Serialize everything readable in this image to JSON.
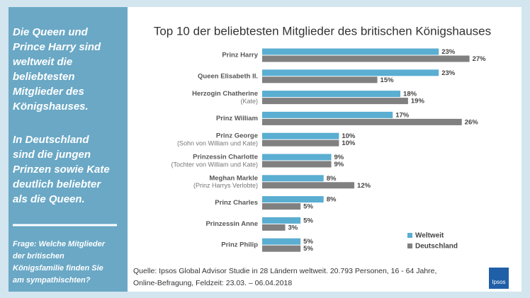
{
  "panel": {
    "paragraph1": [
      "Die Queen und",
      "Prince Harry sind",
      "weltweit die",
      "beliebtesten",
      "Mitglieder des",
      "Königshauses."
    ],
    "paragraph2": [
      "In Deutschland",
      "sind die jungen",
      "Prinzen sowie Kate",
      "deutlich beliebter",
      "als die Queen."
    ],
    "question": [
      "Frage: Welche Mitglieder",
      "der britischen",
      "Königsfamilie finden Sie",
      "am sympathischten?"
    ]
  },
  "chart_data": {
    "type": "hbar",
    "title": "Top 10 der beliebtesten Mitglieder des britischen Königshauses",
    "categories": [
      "Prinz Harry",
      "Queen Elisabeth II.",
      "Herzogin Chatherine",
      "Prinz William",
      "Prinz George",
      "Prinzessin Charlotte",
      "Meghan Markle",
      "Prinz Charles",
      "Prinzessin Anne",
      "Prinz Philip"
    ],
    "category_notes": [
      null,
      null,
      "(Kate)",
      null,
      "(Sohn von William und Kate)",
      "(Tochter von William und Kate)",
      "(Prinz Harrys Verlobte)",
      null,
      null,
      null
    ],
    "series": [
      {
        "name": "Weltweit",
        "color": "#5aaed1",
        "values": [
          23,
          23,
          18,
          17,
          10,
          9,
          8,
          8,
          5,
          5
        ],
        "value_labels": [
          "23%",
          "23%",
          "18%",
          "17%",
          "10%",
          "9%",
          "8%",
          "8%",
          "5%",
          "5%"
        ]
      },
      {
        "name": "Deutschland",
        "color": "#808080",
        "values": [
          27,
          15,
          19,
          26,
          10,
          9,
          12,
          5,
          3,
          5
        ],
        "value_labels": [
          "27%",
          "15%",
          "19%",
          "26%",
          "10%",
          "9%",
          "12%",
          "5%",
          "3%",
          "5%"
        ]
      }
    ],
    "xlim": [
      0,
      27.5
    ],
    "legend": "bottom-right",
    "source": [
      "Quelle: Ipsos Global Advisor Studie in 28 Ländern weltweit. 20.793 Personen, 16 - 64 Jahre,",
      "Online-Befragung,  Feldzeit: 23.03. – 06.04.2018"
    ],
    "logo": "Ipsos"
  }
}
